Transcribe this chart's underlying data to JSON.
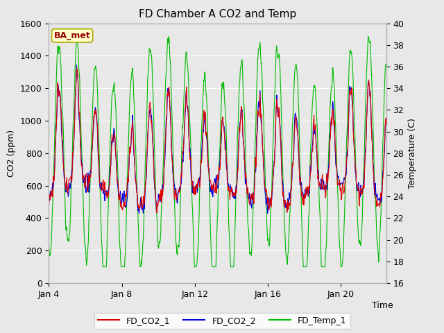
{
  "title": "FD Chamber A CO2 and Temp",
  "xlabel": "Time",
  "ylabel_left": "CO2 (ppm)",
  "ylabel_right": "Temperature (C)",
  "ylim_left": [
    0,
    1600
  ],
  "ylim_right": [
    16,
    40
  ],
  "yticks_left": [
    0,
    200,
    400,
    600,
    800,
    1000,
    1200,
    1400,
    1600
  ],
  "yticks_right": [
    16,
    18,
    20,
    22,
    24,
    26,
    28,
    30,
    32,
    34,
    36,
    38,
    40
  ],
  "xtick_positions": [
    0,
    4,
    8,
    12,
    16
  ],
  "xtick_labels": [
    "Jan 4",
    "Jan 8",
    "Jan 12",
    "Jan 16",
    "Jan 20"
  ],
  "xlim": [
    0,
    18.5
  ],
  "color_co2_1": "#dd0000",
  "color_co2_2": "#0000dd",
  "color_temp": "#00bb00",
  "legend_labels": [
    "FD_CO2_1",
    "FD_CO2_2",
    "FD_Temp_1"
  ],
  "annotation_text": "BA_met",
  "annotation_color": "#990000",
  "annotation_bg": "#ffffcc",
  "annotation_edge": "#aaaa00",
  "plot_bg": "#e8e8e8",
  "fig_bg": "#e8e8e8",
  "line_width": 0.8,
  "title_fontsize": 11,
  "label_fontsize": 9,
  "tick_fontsize": 9,
  "legend_fontsize": 9,
  "n_days": 18.5,
  "pts_per_day": 48,
  "seed": 7
}
